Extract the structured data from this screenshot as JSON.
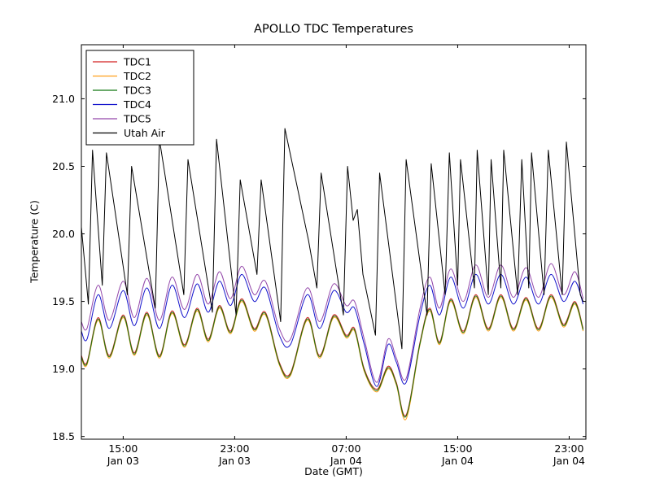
{
  "figure": {
    "title": "APOLLO TDC Temperatures",
    "xlabel": "Date (GMT)",
    "ylabel": "Temperature (C)"
  },
  "chart_data": {
    "type": "line",
    "title": "APOLLO TDC Temperatures",
    "xlabel": "Date (GMT)",
    "ylabel": "Temperature (C)",
    "x_axis_note": "x expressed as hours from left edge (about 12:00 GMT Jan 03) to right edge (about 24:00 GMT Jan 04)",
    "xlim": [
      0,
      36.2
    ],
    "ylim": [
      18.48,
      21.4
    ],
    "grid": false,
    "legend_position": "upper left",
    "y_ticks": [
      {
        "v": 18.5,
        "label": "18.5"
      },
      {
        "v": 19.0,
        "label": "19.0"
      },
      {
        "v": 19.5,
        "label": "19.5"
      },
      {
        "v": 20.0,
        "label": "20.0"
      },
      {
        "v": 20.5,
        "label": "20.5"
      },
      {
        "v": 21.0,
        "label": "21.0"
      }
    ],
    "x_ticks": [
      {
        "t": 3,
        "label": [
          "15:00",
          "Jan 03"
        ]
      },
      {
        "t": 11,
        "label": [
          "23:00",
          "Jan 03"
        ]
      },
      {
        "t": 19,
        "label": [
          "07:00",
          "Jan 04"
        ]
      },
      {
        "t": 27,
        "label": [
          "15:00",
          "Jan 04"
        ]
      },
      {
        "t": 35,
        "label": [
          "23:00",
          "Jan 04"
        ]
      }
    ],
    "series": [
      {
        "name": "TDC1",
        "color": "#d42222",
        "smooth": true,
        "t": [
          0.0,
          0.4,
          1.2,
          2.0,
          3.0,
          3.8,
          4.7,
          5.6,
          6.5,
          7.4,
          8.3,
          9.1,
          9.9,
          10.7,
          11.5,
          12.4,
          13.2,
          14.2,
          15.0,
          16.2,
          17.1,
          18.1,
          19.0,
          19.6,
          20.3,
          21.2,
          22.0,
          22.6,
          23.3,
          24.3,
          25.0,
          25.7,
          26.5,
          27.4,
          28.3,
          29.2,
          30.1,
          31.0,
          31.9,
          32.8,
          33.7,
          34.6,
          35.4,
          36.0
        ],
        "v": [
          19.1,
          19.05,
          19.38,
          19.1,
          19.4,
          19.12,
          19.42,
          19.1,
          19.43,
          19.18,
          19.45,
          19.22,
          19.47,
          19.28,
          19.52,
          19.3,
          19.42,
          19.05,
          18.97,
          19.38,
          19.1,
          19.4,
          19.25,
          19.3,
          19.0,
          18.85,
          19.02,
          18.9,
          18.66,
          19.2,
          19.45,
          19.2,
          19.52,
          19.28,
          19.55,
          19.3,
          19.55,
          19.3,
          19.53,
          19.3,
          19.55,
          19.33,
          19.5,
          19.3
        ]
      },
      {
        "name": "TDC2",
        "color": "#ff9f1a",
        "smooth": true,
        "t": [
          0.0,
          0.4,
          1.2,
          2.0,
          3.0,
          3.8,
          4.7,
          5.6,
          6.5,
          7.4,
          8.3,
          9.1,
          9.9,
          10.7,
          11.5,
          12.4,
          13.2,
          14.2,
          15.0,
          16.2,
          17.1,
          18.1,
          19.0,
          19.6,
          20.3,
          21.2,
          22.0,
          22.6,
          23.3,
          24.3,
          25.0,
          25.7,
          26.5,
          27.4,
          28.3,
          29.2,
          30.1,
          31.0,
          31.9,
          32.8,
          33.7,
          34.6,
          35.4,
          36.0
        ],
        "v": [
          19.08,
          19.03,
          19.36,
          19.08,
          19.38,
          19.1,
          19.4,
          19.08,
          19.41,
          19.16,
          19.43,
          19.2,
          19.45,
          19.26,
          19.5,
          19.28,
          19.4,
          19.03,
          18.95,
          19.36,
          19.08,
          19.38,
          19.23,
          19.28,
          18.98,
          18.83,
          19.0,
          18.88,
          18.63,
          19.18,
          19.43,
          19.18,
          19.5,
          19.26,
          19.53,
          19.28,
          19.53,
          19.28,
          19.51,
          19.28,
          19.53,
          19.31,
          19.48,
          19.28
        ]
      },
      {
        "name": "TDC3",
        "color": "#117711",
        "smooth": true,
        "t": [
          0.0,
          0.4,
          1.2,
          2.0,
          3.0,
          3.8,
          4.7,
          5.6,
          6.5,
          7.4,
          8.3,
          9.1,
          9.9,
          10.7,
          11.5,
          12.4,
          13.2,
          14.2,
          15.0,
          16.2,
          17.1,
          18.1,
          19.0,
          19.6,
          20.3,
          21.2,
          22.0,
          22.6,
          23.3,
          24.3,
          25.0,
          25.7,
          26.5,
          27.4,
          28.3,
          29.2,
          30.1,
          31.0,
          31.9,
          32.8,
          33.7,
          34.6,
          35.4,
          36.0
        ],
        "v": [
          19.09,
          19.04,
          19.37,
          19.09,
          19.39,
          19.11,
          19.41,
          19.09,
          19.42,
          19.17,
          19.44,
          19.21,
          19.46,
          19.27,
          19.51,
          19.29,
          19.41,
          19.04,
          18.96,
          19.37,
          19.09,
          19.39,
          19.24,
          19.29,
          18.99,
          18.84,
          19.01,
          18.89,
          18.65,
          19.19,
          19.44,
          19.19,
          19.51,
          19.27,
          19.54,
          19.29,
          19.54,
          19.29,
          19.52,
          19.29,
          19.54,
          19.32,
          19.49,
          19.29
        ]
      },
      {
        "name": "TDC4",
        "color": "#1414cc",
        "smooth": true,
        "t": [
          0.0,
          0.4,
          1.2,
          2.0,
          3.0,
          3.8,
          4.7,
          5.6,
          6.5,
          7.4,
          8.3,
          9.1,
          9.9,
          10.7,
          11.5,
          12.4,
          13.2,
          14.2,
          15.0,
          16.2,
          17.1,
          18.1,
          19.0,
          19.6,
          20.3,
          21.2,
          22.0,
          22.6,
          23.3,
          24.3,
          25.0,
          25.7,
          26.5,
          27.4,
          28.3,
          29.2,
          30.1,
          31.0,
          31.9,
          32.8,
          33.7,
          34.6,
          35.4,
          36.0
        ],
        "v": [
          19.28,
          19.22,
          19.55,
          19.3,
          19.58,
          19.32,
          19.6,
          19.3,
          19.62,
          19.38,
          19.63,
          19.42,
          19.65,
          19.47,
          19.7,
          19.5,
          19.6,
          19.25,
          19.18,
          19.55,
          19.3,
          19.58,
          19.42,
          19.45,
          19.18,
          18.87,
          19.18,
          19.05,
          18.9,
          19.4,
          19.62,
          19.4,
          19.68,
          19.45,
          19.7,
          19.48,
          19.7,
          19.48,
          19.68,
          19.48,
          19.7,
          19.5,
          19.65,
          19.48
        ]
      },
      {
        "name": "TDC5",
        "color": "#9448aa",
        "smooth": true,
        "t": [
          0.0,
          0.4,
          1.2,
          2.0,
          3.0,
          3.8,
          4.7,
          5.6,
          6.5,
          7.4,
          8.3,
          9.1,
          9.9,
          10.7,
          11.5,
          12.4,
          13.2,
          14.2,
          15.0,
          16.2,
          17.1,
          18.1,
          19.0,
          19.6,
          20.3,
          21.2,
          22.0,
          22.6,
          23.3,
          24.3,
          25.0,
          25.7,
          26.5,
          27.4,
          28.3,
          29.2,
          30.1,
          31.0,
          31.9,
          32.8,
          33.7,
          34.6,
          35.4,
          36.0
        ],
        "v": [
          19.35,
          19.3,
          19.62,
          19.36,
          19.65,
          19.38,
          19.67,
          19.36,
          19.68,
          19.44,
          19.7,
          19.48,
          19.72,
          19.52,
          19.76,
          19.55,
          19.65,
          19.3,
          19.22,
          19.6,
          19.35,
          19.63,
          19.47,
          19.5,
          19.22,
          18.9,
          19.22,
          19.08,
          18.93,
          19.45,
          19.68,
          19.45,
          19.74,
          19.5,
          19.77,
          19.53,
          19.77,
          19.53,
          19.75,
          19.53,
          19.78,
          19.55,
          19.72,
          19.52
        ]
      },
      {
        "name": "Utah Air",
        "color": "#000000",
        "smooth": false,
        "t": [
          0.0,
          0.5,
          0.8,
          1.5,
          1.8,
          3.3,
          3.6,
          5.3,
          5.6,
          7.35,
          7.65,
          9.4,
          9.7,
          11.1,
          11.4,
          12.6,
          12.9,
          14.3,
          14.6,
          16.3,
          16.9,
          17.2,
          18.8,
          19.1,
          19.5,
          19.8,
          20.2,
          21.1,
          21.4,
          23.0,
          23.3,
          24.8,
          25.1,
          26.1,
          26.4,
          27.0,
          27.2,
          28.2,
          28.4,
          29.2,
          29.4,
          30.1,
          30.3,
          31.3,
          31.6,
          32.1,
          32.3,
          33.2,
          33.5,
          34.5,
          34.8,
          35.8,
          36.0
        ],
        "v": [
          20.05,
          19.48,
          20.62,
          19.62,
          20.6,
          19.55,
          20.5,
          19.45,
          20.7,
          19.55,
          20.55,
          19.42,
          20.7,
          19.4,
          20.4,
          19.7,
          20.4,
          19.35,
          20.78,
          19.95,
          19.6,
          20.45,
          19.4,
          20.5,
          20.1,
          20.18,
          19.7,
          19.25,
          20.45,
          19.15,
          20.55,
          19.4,
          20.52,
          19.55,
          20.6,
          19.62,
          20.55,
          19.6,
          20.62,
          19.55,
          20.55,
          19.6,
          20.62,
          19.55,
          20.55,
          19.6,
          20.6,
          19.55,
          20.62,
          19.55,
          20.68,
          19.55,
          19.5
        ]
      }
    ]
  }
}
